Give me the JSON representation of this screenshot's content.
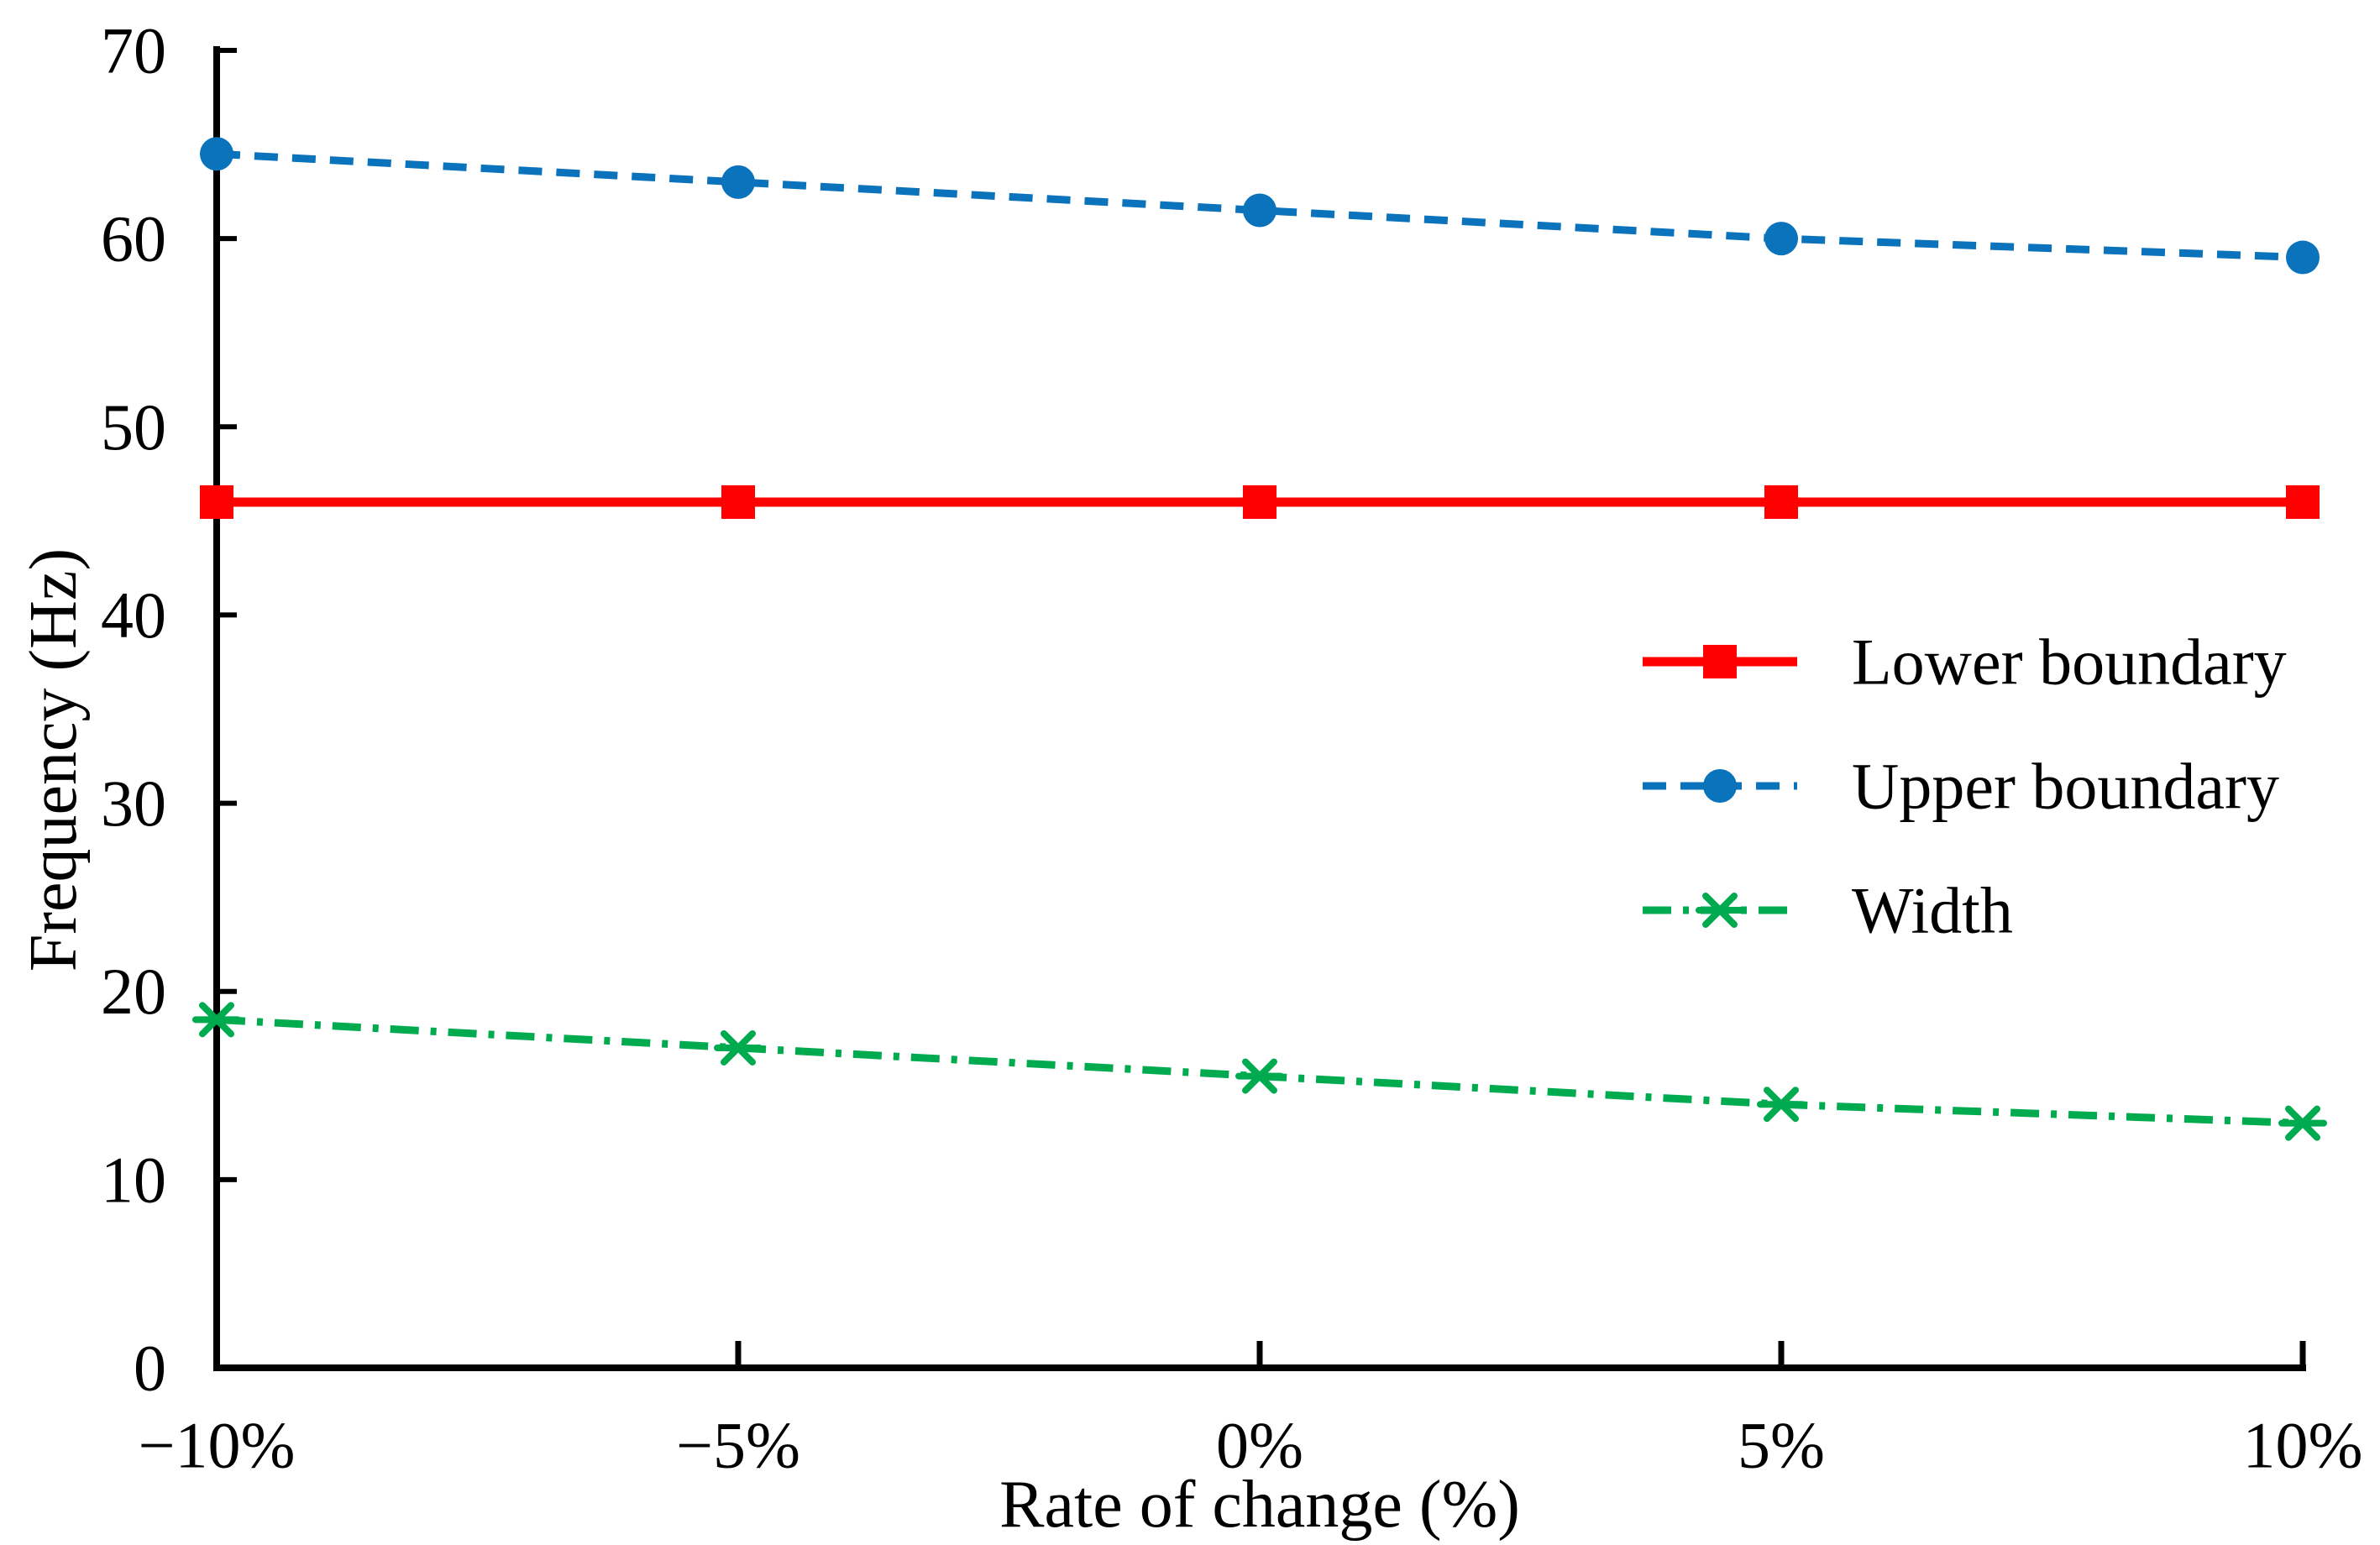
{
  "figure": {
    "background_color": "#FFFFFF",
    "text_color": "#000000",
    "axis_color": "#000000"
  },
  "chart_data": {
    "type": "line",
    "title": "",
    "xlabel": "Rate of change (%)",
    "ylabel": "Frequency (Hz)",
    "categories": [
      "−10%",
      "−5%",
      "0%",
      "5%",
      "10%"
    ],
    "series": [
      {
        "name": "Lower boundary",
        "values": [
          46,
          46,
          46,
          46,
          46
        ],
        "color": "#FF0000",
        "line_style": "solid",
        "marker": "square"
      },
      {
        "name": "Upper boundary",
        "values": [
          64.5,
          63,
          61.5,
          60,
          59
        ],
        "color": "#0B72BC",
        "line_style": "dashed",
        "marker": "circle"
      },
      {
        "name": "Width",
        "values": [
          18.5,
          17,
          15.5,
          14,
          13
        ],
        "color": "#00AB50",
        "line_style": "dash-dot",
        "marker": "asterisk"
      }
    ],
    "ylim": [
      0,
      70
    ],
    "yticks": [
      0,
      10,
      20,
      30,
      40,
      50,
      60,
      70
    ],
    "grid": false,
    "legend_position": "inside-right-middle"
  }
}
